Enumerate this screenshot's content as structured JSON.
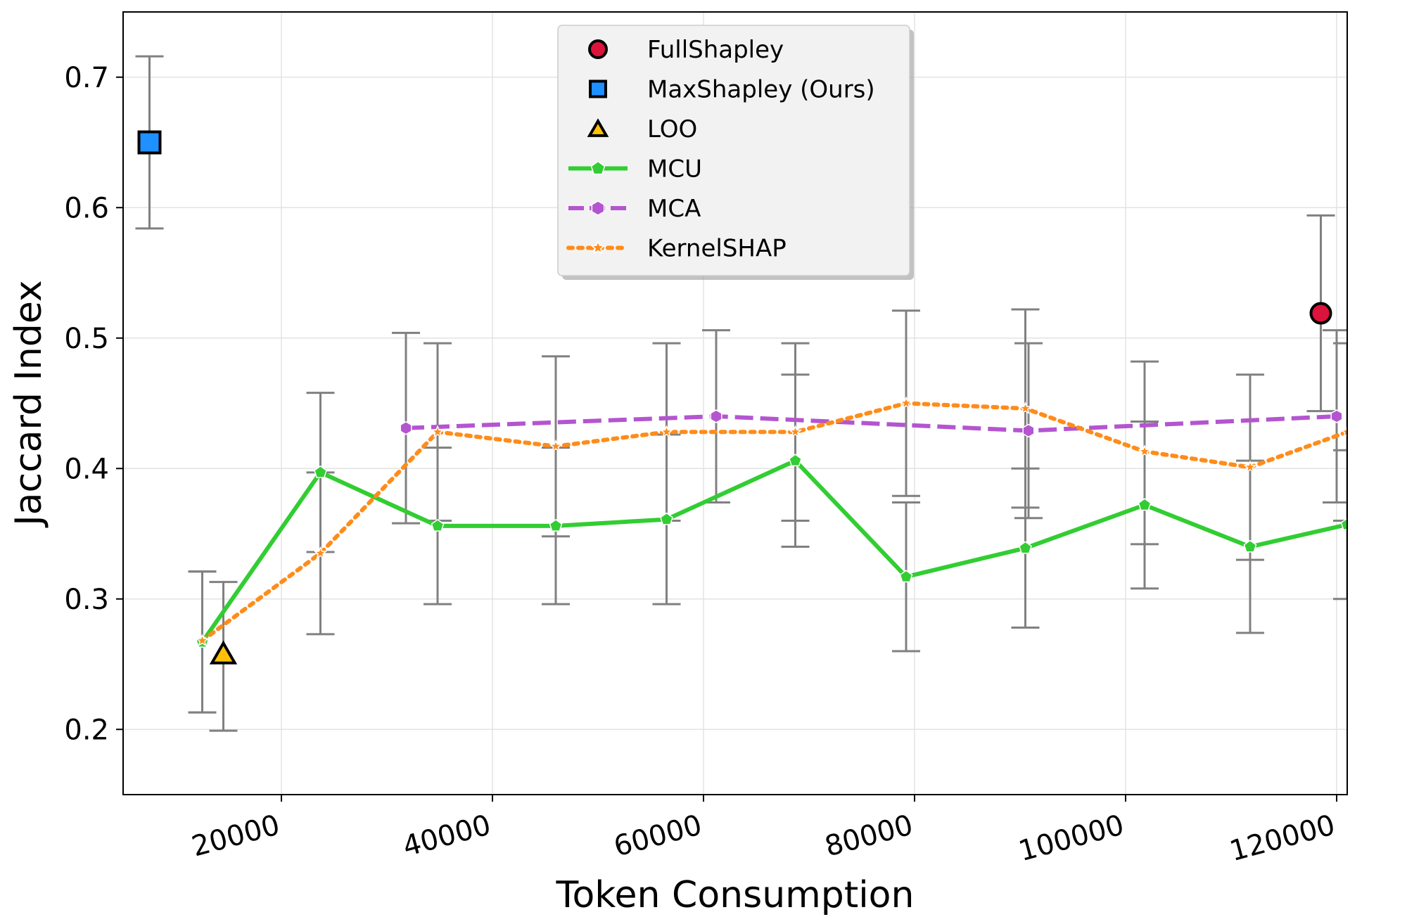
{
  "chart_data": {
    "type": "line",
    "xlabel": "Token Consumption",
    "ylabel": "Jaccard Index",
    "xlim": [
      5000,
      121000
    ],
    "ylim": [
      0.15,
      0.75
    ],
    "xticks": [
      20000,
      40000,
      60000,
      80000,
      100000,
      120000
    ],
    "xtick_labels": [
      "20000",
      "40000",
      "60000",
      "80000",
      "100000",
      "120000"
    ],
    "yticks": [
      0.2,
      0.3,
      0.4,
      0.5,
      0.6,
      0.7
    ],
    "ytick_labels": [
      "0.2",
      "0.3",
      "0.4",
      "0.5",
      "0.6",
      "0.7"
    ],
    "grid": true,
    "legend_position": "top-center",
    "series": [
      {
        "name": "FullShapley",
        "color": "#dc143c",
        "marker": "circle",
        "line": "none",
        "points": [
          {
            "x": 118500,
            "y": 0.519,
            "lo": 0.444,
            "hi": 0.594
          }
        ]
      },
      {
        "name": "MaxShapley (Ours)",
        "color": "#1e90ff",
        "marker": "square",
        "line": "none",
        "points": [
          {
            "x": 7500,
            "y": 0.65,
            "lo": 0.584,
            "hi": 0.716
          }
        ]
      },
      {
        "name": "LOO",
        "color": "#ffc107",
        "marker": "triangle",
        "line": "none",
        "points": [
          {
            "x": 14500,
            "y": 0.256,
            "lo": 0.199,
            "hi": 0.313
          }
        ]
      },
      {
        "name": "MCU",
        "color": "#32cd32",
        "marker": "pentagon",
        "line": "solid",
        "points": [
          {
            "x": 12500,
            "y": 0.267,
            "lo": 0.213,
            "hi": 0.321
          },
          {
            "x": 23700,
            "y": 0.397,
            "lo": 0.336,
            "hi": 0.458
          },
          {
            "x": 34800,
            "y": 0.356,
            "lo": 0.296,
            "hi": 0.416
          },
          {
            "x": 46000,
            "y": 0.356,
            "lo": 0.296,
            "hi": 0.416
          },
          {
            "x": 56500,
            "y": 0.361,
            "lo": 0.296,
            "hi": 0.426
          },
          {
            "x": 68700,
            "y": 0.406,
            "lo": 0.34,
            "hi": 0.472
          },
          {
            "x": 79200,
            "y": 0.317,
            "lo": 0.26,
            "hi": 0.374
          },
          {
            "x": 90500,
            "y": 0.339,
            "lo": 0.278,
            "hi": 0.4
          },
          {
            "x": 101800,
            "y": 0.372,
            "lo": 0.308,
            "hi": 0.436
          },
          {
            "x": 111800,
            "y": 0.34,
            "lo": 0.274,
            "hi": 0.406
          },
          {
            "x": 121000,
            "y": 0.357,
            "lo": 0.3,
            "hi": 0.414
          }
        ]
      },
      {
        "name": "MCA",
        "color": "#b455d0",
        "marker": "hexagon",
        "line": "dashed",
        "points": [
          {
            "x": 31800,
            "y": 0.431,
            "lo": 0.358,
            "hi": 0.504
          },
          {
            "x": 61200,
            "y": 0.44,
            "lo": 0.374,
            "hi": 0.506
          },
          {
            "x": 90800,
            "y": 0.429,
            "lo": 0.362,
            "hi": 0.496
          },
          {
            "x": 120000,
            "y": 0.44,
            "lo": 0.374,
            "hi": 0.506
          }
        ]
      },
      {
        "name": "KernelSHAP",
        "color": "#ff8c1a",
        "marker": "star",
        "line": "dotted",
        "points": [
          {
            "x": 12500,
            "y": 0.268,
            "lo": 0.213,
            "hi": 0.321
          },
          {
            "x": 23700,
            "y": 0.335,
            "lo": 0.273,
            "hi": 0.397
          },
          {
            "x": 34800,
            "y": 0.428,
            "lo": 0.36,
            "hi": 0.496
          },
          {
            "x": 46000,
            "y": 0.417,
            "lo": 0.348,
            "hi": 0.486
          },
          {
            "x": 56500,
            "y": 0.428,
            "lo": 0.36,
            "hi": 0.496
          },
          {
            "x": 68700,
            "y": 0.428,
            "lo": 0.36,
            "hi": 0.496
          },
          {
            "x": 79200,
            "y": 0.45,
            "lo": 0.379,
            "hi": 0.521
          },
          {
            "x": 90500,
            "y": 0.446,
            "lo": 0.37,
            "hi": 0.522
          },
          {
            "x": 101800,
            "y": 0.413,
            "lo": 0.342,
            "hi": 0.482
          },
          {
            "x": 111800,
            "y": 0.401,
            "lo": 0.33,
            "hi": 0.472
          },
          {
            "x": 121000,
            "y": 0.428,
            "lo": 0.36,
            "hi": 0.496
          }
        ]
      }
    ]
  }
}
